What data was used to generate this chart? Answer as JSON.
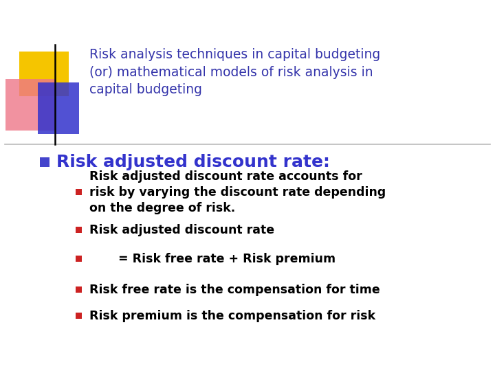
{
  "bg_color": "#ffffff",
  "title_line1": "Risk analysis techniques in capital budgeting",
  "title_line2": "(or) mathematical models of risk analysis in",
  "title_line3": "capital budgeting",
  "title_color": "#3333aa",
  "title_fontsize": 13.5,
  "main_bullet_text": "Risk adjusted discount rate:",
  "main_bullet_color": "#3333cc",
  "main_bullet_fontsize": 18,
  "sub_bullets": [
    "Risk adjusted discount rate accounts for\nrisk by varying the discount rate depending\non the degree of risk.",
    "Risk adjusted discount rate",
    "       = Risk free rate + Risk premium",
    "Risk free rate is the compensation for time",
    "Risk premium is the compensation for risk"
  ],
  "sub_bullet_fontsize": 12.5,
  "sub_bullet_color": "#000000",
  "bullet_square_color_main": "#4444cc",
  "bullet_square_color_sub": "#cc2222",
  "separator_color": "#bbbbbb",
  "decor_yellow": "#f5c500",
  "decor_pink": "#ee7788",
  "decor_blue": "#3333cc"
}
